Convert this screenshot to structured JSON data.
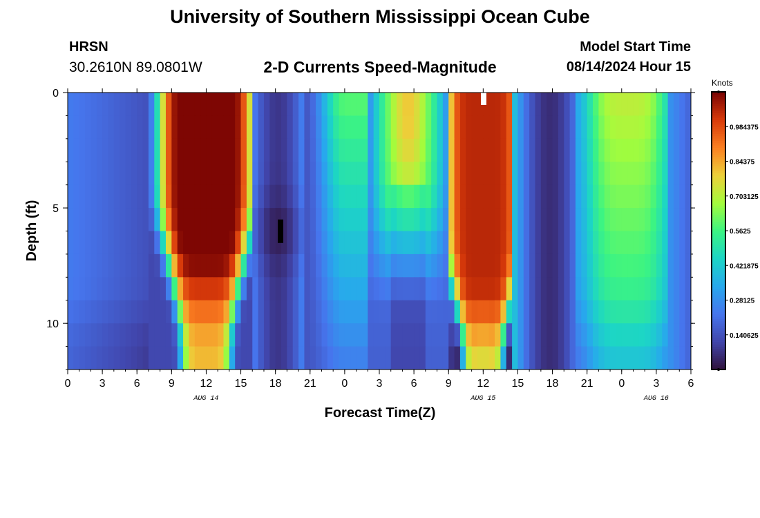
{
  "header": {
    "title": "University of Southern Mississippi Ocean Cube",
    "station": "HRSN",
    "coordinates": "30.2610N  89.0801W",
    "product": "2-D Currents Speed-Magnitude",
    "model_start_label": "Model Start Time",
    "model_start_value": "08/14/2024 Hour 15"
  },
  "footer": {
    "title": "University of Southern Mississippi Ocean Cube"
  },
  "colorbar": {
    "units": "Knots",
    "tick_labels": [
      "0.140625",
      "0.28125",
      "0.421875",
      "0.5625",
      "0.703125",
      "0.84375",
      "0.984375"
    ],
    "tick_values": [
      0.140625,
      0.28125,
      0.421875,
      0.5625,
      0.703125,
      0.84375,
      0.984375
    ],
    "range": [
      0.0,
      1.125
    ]
  },
  "chart_data": {
    "type": "heatmap",
    "title": "2-D Currents Speed-Magnitude",
    "xlabel": "Forecast Time(Z)",
    "ylabel": "Depth (ft)",
    "x_tick_labels": [
      "0",
      "3",
      "6",
      "9",
      "12",
      "15",
      "18",
      "21",
      "0",
      "3",
      "6",
      "9",
      "12",
      "15",
      "18",
      "21",
      "0",
      "3",
      "6"
    ],
    "x_range_hours": [
      0,
      54
    ],
    "date_labels": [
      {
        "label": "AUG 14",
        "hour": 12
      },
      {
        "label": "AUG 15",
        "hour": 36
      },
      {
        "label": "AUG 16",
        "hour": 51
      }
    ],
    "y_tick_labels": [
      "0",
      "5",
      "10"
    ],
    "y_tick_values": [
      0,
      5,
      10
    ],
    "y_range_ft": [
      0,
      12
    ],
    "value_units": "Knots",
    "time_step_hours": 0.5,
    "depth_levels_ft": [
      0.5,
      1.5,
      2.5,
      3.5,
      4.5,
      5.5,
      6.5,
      7.5,
      8.5,
      9.5,
      10.5,
      11.5
    ],
    "speed_peaks": [
      {
        "hour": 12.0,
        "depth_ft": 1.0,
        "knots": 1.05
      },
      {
        "hour": 18.0,
        "depth_ft": 6.0,
        "knots": 0.02
      },
      {
        "hour": 29.5,
        "depth_ft": 1.0,
        "knots": 0.7
      },
      {
        "hour": 36.0,
        "depth_ft": 1.0,
        "knots": 1.0
      },
      {
        "hour": 42.0,
        "depth_ft": 2.0,
        "knots": 0.05
      },
      {
        "hour": 49.0,
        "depth_ft": 1.0,
        "knots": 0.72
      }
    ]
  }
}
